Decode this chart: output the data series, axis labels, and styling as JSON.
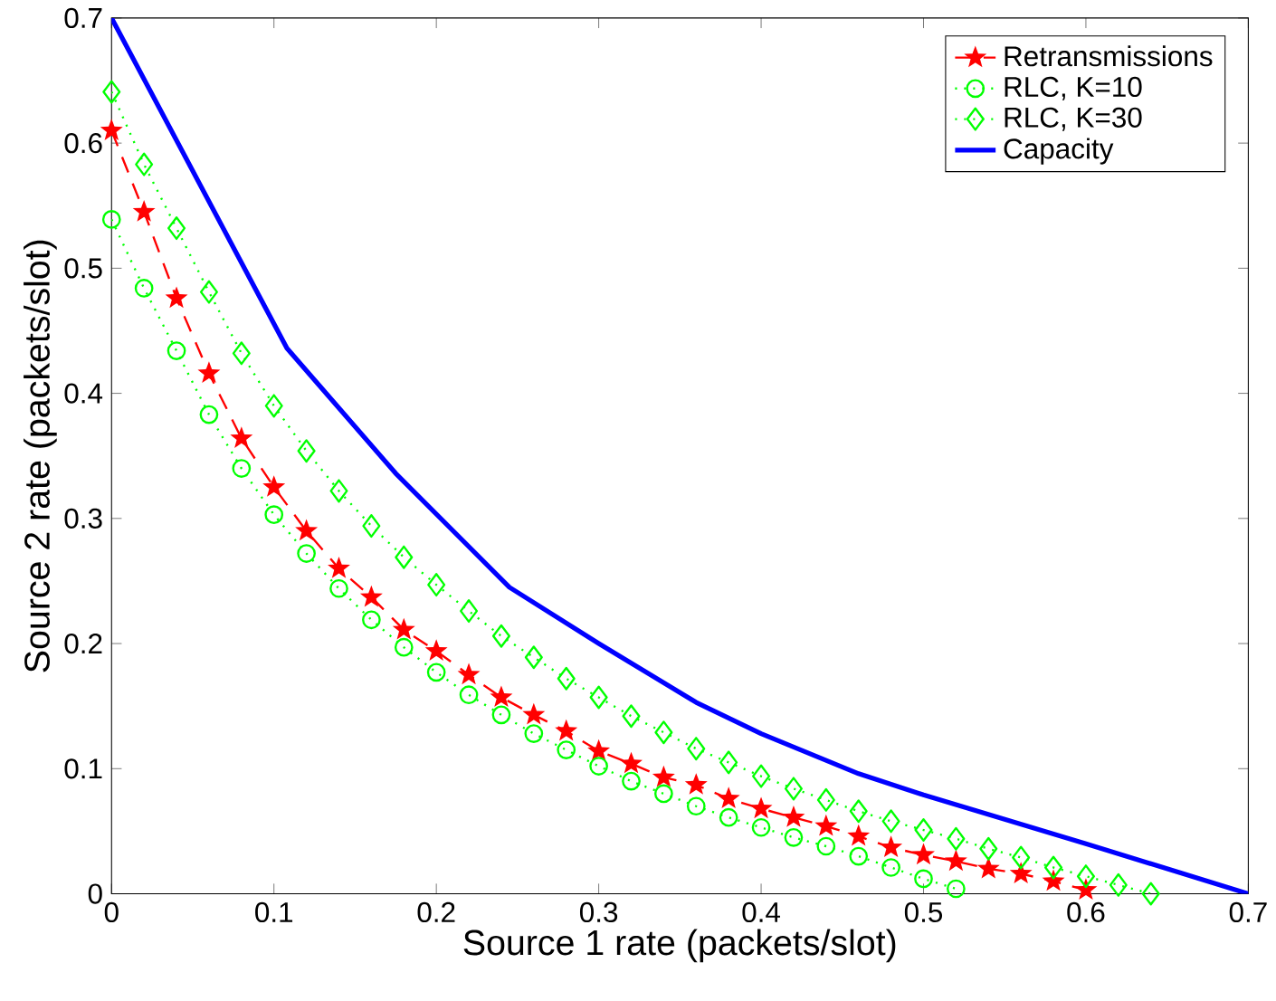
{
  "chart_data": {
    "type": "line",
    "xlabel": "Source 1 rate (packets/slot)",
    "ylabel": "Source 2 rate (packets/slot)",
    "xlim": [
      0,
      0.7
    ],
    "ylim": [
      0,
      0.7
    ],
    "xticks": [
      0,
      0.1,
      0.2,
      0.3,
      0.4,
      0.5,
      0.6,
      0.7
    ],
    "yticks": [
      0,
      0.1,
      0.2,
      0.3,
      0.4,
      0.5,
      0.6,
      0.7
    ],
    "grid": false,
    "legend": "top right",
    "series": [
      {
        "name": "Retransmissions",
        "color": "#ff0000",
        "marker": "star",
        "line_style": "dashed",
        "x": [
          0,
          0.02,
          0.04,
          0.06,
          0.08,
          0.1,
          0.12,
          0.14,
          0.16,
          0.18,
          0.2,
          0.22,
          0.24,
          0.26,
          0.28,
          0.3,
          0.32,
          0.34,
          0.36,
          0.38,
          0.4,
          0.42,
          0.44,
          0.46,
          0.48,
          0.5,
          0.52,
          0.54,
          0.56,
          0.58,
          0.6
        ],
        "values": [
          0.61,
          0.545,
          0.476,
          0.416,
          0.364,
          0.325,
          0.29,
          0.26,
          0.237,
          0.211,
          0.194,
          0.175,
          0.157,
          0.143,
          0.13,
          0.114,
          0.104,
          0.093,
          0.087,
          0.076,
          0.068,
          0.061,
          0.054,
          0.046,
          0.037,
          0.031,
          0.026,
          0.02,
          0.016,
          0.01,
          0.003
        ]
      },
      {
        "name": "RLC, K=10",
        "color": "#00ff00",
        "marker": "circle",
        "line_style": "dotted",
        "x": [
          0,
          0.02,
          0.04,
          0.06,
          0.08,
          0.1,
          0.12,
          0.14,
          0.16,
          0.18,
          0.2,
          0.22,
          0.24,
          0.26,
          0.28,
          0.3,
          0.32,
          0.34,
          0.36,
          0.38,
          0.4,
          0.42,
          0.44,
          0.46,
          0.48,
          0.5,
          0.52
        ],
        "values": [
          0.539,
          0.484,
          0.434,
          0.383,
          0.34,
          0.303,
          0.272,
          0.244,
          0.219,
          0.197,
          0.177,
          0.159,
          0.143,
          0.128,
          0.115,
          0.102,
          0.09,
          0.08,
          0.07,
          0.061,
          0.053,
          0.045,
          0.038,
          0.03,
          0.021,
          0.012,
          0.004
        ]
      },
      {
        "name": "RLC, K=30",
        "color": "#00ff00",
        "marker": "diamond",
        "line_style": "dotted",
        "x": [
          0,
          0.02,
          0.04,
          0.06,
          0.08,
          0.1,
          0.12,
          0.14,
          0.16,
          0.18,
          0.2,
          0.22,
          0.24,
          0.26,
          0.28,
          0.3,
          0.32,
          0.34,
          0.36,
          0.38,
          0.4,
          0.42,
          0.44,
          0.46,
          0.48,
          0.5,
          0.52,
          0.54,
          0.56,
          0.58,
          0.6,
          0.62,
          0.64
        ],
        "values": [
          0.641,
          0.583,
          0.532,
          0.481,
          0.432,
          0.39,
          0.354,
          0.322,
          0.294,
          0.269,
          0.247,
          0.226,
          0.206,
          0.189,
          0.172,
          0.157,
          0.142,
          0.129,
          0.116,
          0.105,
          0.094,
          0.084,
          0.075,
          0.066,
          0.058,
          0.051,
          0.044,
          0.036,
          0.029,
          0.021,
          0.014,
          0.007,
          0.0
        ]
      },
      {
        "name": "Capacity",
        "color": "#0000ff",
        "marker": "none",
        "line_style": "solid",
        "x": [
          0,
          0.108,
          0.175,
          0.245,
          0.3,
          0.36,
          0.4,
          0.46,
          0.5,
          0.6,
          0.7
        ],
        "values": [
          0.7,
          0.436,
          0.336,
          0.245,
          0.2,
          0.153,
          0.128,
          0.096,
          0.079,
          0.04,
          0
        ]
      }
    ]
  }
}
